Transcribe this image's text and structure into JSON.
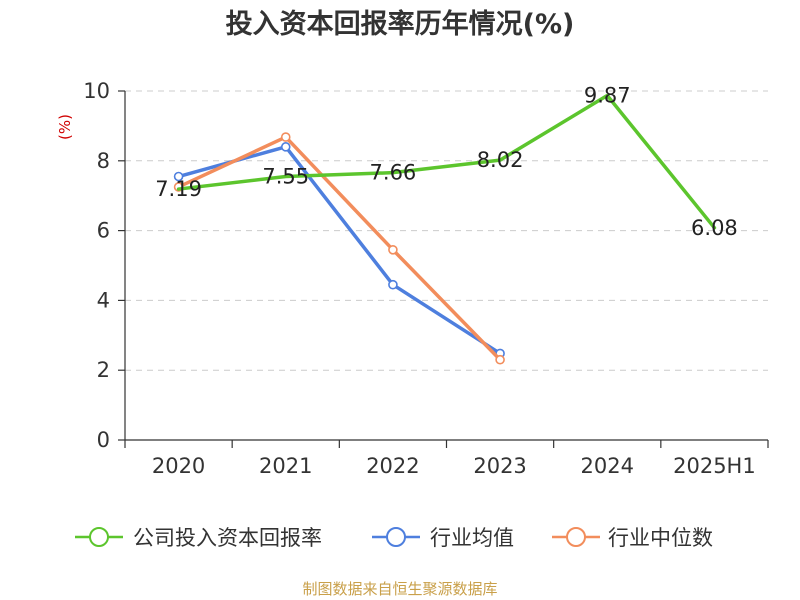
{
  "chart_data": {
    "type": "line",
    "title": "投入资本回报率历年情况(%)",
    "ylabel": "(%)",
    "categories": [
      "2020",
      "2021",
      "2022",
      "2023",
      "2024",
      "2025H1"
    ],
    "ylim": [
      0,
      10
    ],
    "yticks": [
      0,
      2,
      4,
      6,
      8,
      10
    ],
    "grid": true,
    "legend_position": "bottom",
    "series": [
      {
        "name": "公司投入资本回报率",
        "color": "#5cc52d",
        "values": [
          7.19,
          7.55,
          7.66,
          8.02,
          9.87,
          6.08
        ],
        "labels": [
          "7.19",
          "7.55",
          "7.66",
          "8.02",
          "9.87",
          "6.08"
        ]
      },
      {
        "name": "行业均值",
        "color": "#4e7fde",
        "values": [
          7.55,
          8.4,
          4.45,
          2.48,
          null,
          null
        ]
      },
      {
        "name": "行业中位数",
        "color": "#f28d5c",
        "values": [
          7.25,
          8.68,
          5.45,
          2.3,
          null,
          null
        ]
      }
    ]
  },
  "source": "制图数据来自恒生聚源数据库"
}
